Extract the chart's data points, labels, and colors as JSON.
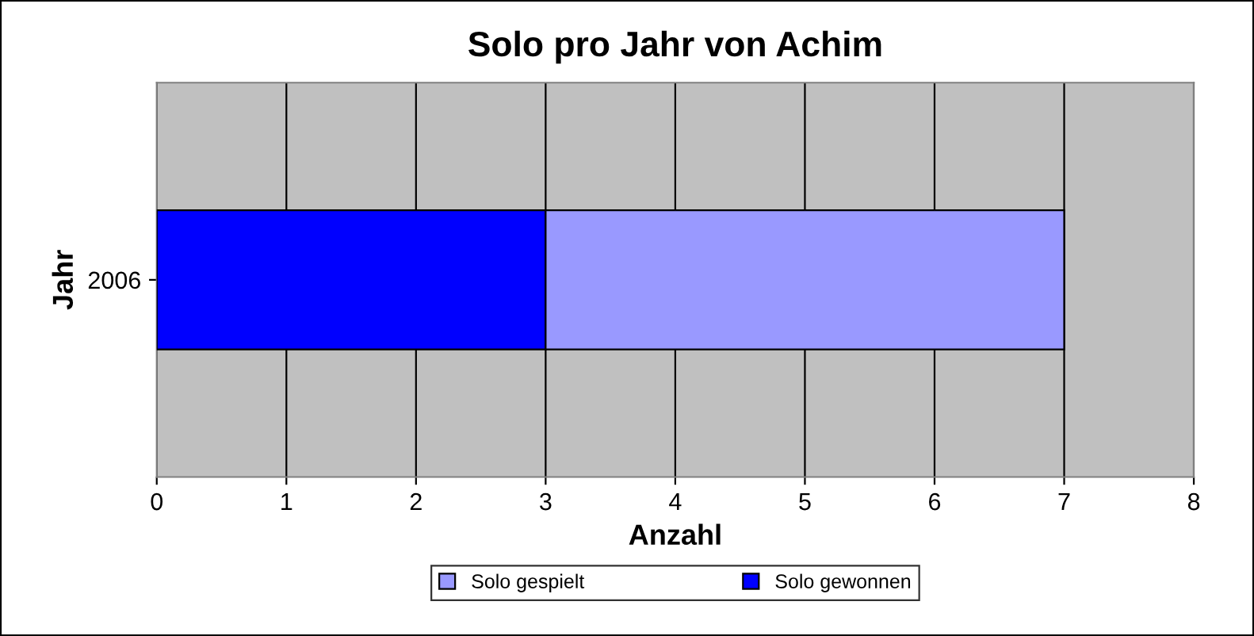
{
  "chart_data": {
    "type": "bar",
    "title": "Solo pro Jahr von Achim",
    "xlabel": "Anzahl",
    "ylabel": "Jahr",
    "orientation": "horizontal",
    "stacked": true,
    "categories": [
      "2006"
    ],
    "series": [
      {
        "name": "Solo gewonnen",
        "color": "#0000ff",
        "values": [
          3
        ]
      },
      {
        "name": "Solo gespielt",
        "color": "#9999ff",
        "values": [
          4
        ]
      }
    ],
    "xlim": [
      0,
      8
    ],
    "xticks": [
      0,
      1,
      2,
      3,
      4,
      5,
      6,
      7,
      8
    ],
    "grid": "x",
    "legend": "bottom"
  }
}
